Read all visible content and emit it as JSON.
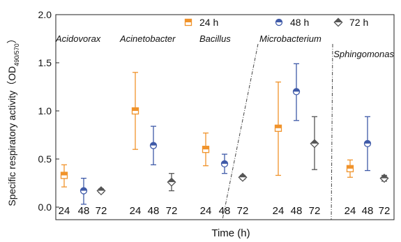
{
  "chart_data": {
    "type": "scatter",
    "ylabel": "Specific respiratory activity（OD",
    "ylabel_sub": "490/570",
    "ylabel_close": "）",
    "xlabel": "Time (h)",
    "ylim": [
      0,
      2.0
    ],
    "yticks": [
      "0.0",
      "0.5",
      "1.0",
      "1.5",
      "2.0"
    ],
    "legend_position": "top-right",
    "legend": [
      {
        "label": "24 h",
        "color": "#f0932b",
        "marker": "square-half"
      },
      {
        "label": "48 h",
        "color": "#3f5aa8",
        "marker": "circle-half"
      },
      {
        "label": "72 h",
        "color": "#555555",
        "marker": "diamond-half"
      }
    ],
    "groups": [
      {
        "name": "Acidovorax",
        "points": [
          {
            "time": "24",
            "value": 0.33,
            "err_low": 0.21,
            "err_high": 0.44
          },
          {
            "time": "48",
            "value": 0.17,
            "err_low": 0.03,
            "err_high": 0.3
          },
          {
            "time": "72",
            "value": 0.17,
            "err_low": 0.15,
            "err_high": 0.19
          }
        ]
      },
      {
        "name": "Acinetobacter",
        "points": [
          {
            "time": "24",
            "value": 1.0,
            "err_low": 0.6,
            "err_high": 1.4
          },
          {
            "time": "48",
            "value": 0.64,
            "err_low": 0.44,
            "err_high": 0.84
          },
          {
            "time": "72",
            "value": 0.26,
            "err_low": 0.17,
            "err_high": 0.35
          }
        ]
      },
      {
        "name": "Bacillus",
        "points": [
          {
            "time": "24",
            "value": 0.6,
            "err_low": 0.43,
            "err_high": 0.77
          },
          {
            "time": "48",
            "value": 0.45,
            "err_low": 0.35,
            "err_high": 0.55
          },
          {
            "time": "72",
            "value": 0.31,
            "err_low": 0.29,
            "err_high": 0.33
          }
        ]
      },
      {
        "name": "Microbacterium",
        "points": [
          {
            "time": "24",
            "value": 0.82,
            "err_low": 0.33,
            "err_high": 1.3
          },
          {
            "time": "48",
            "value": 1.2,
            "err_low": 0.9,
            "err_high": 1.49
          },
          {
            "time": "72",
            "value": 0.66,
            "err_low": 0.39,
            "err_high": 0.94
          }
        ]
      },
      {
        "name": "Sphingomonas",
        "points": [
          {
            "time": "24",
            "value": 0.4,
            "err_low": 0.31,
            "err_high": 0.49
          },
          {
            "time": "48",
            "value": 0.66,
            "err_low": 0.38,
            "err_high": 0.94
          },
          {
            "time": "72",
            "value": 0.3,
            "err_low": 0.27,
            "err_high": 0.33
          }
        ]
      }
    ]
  }
}
